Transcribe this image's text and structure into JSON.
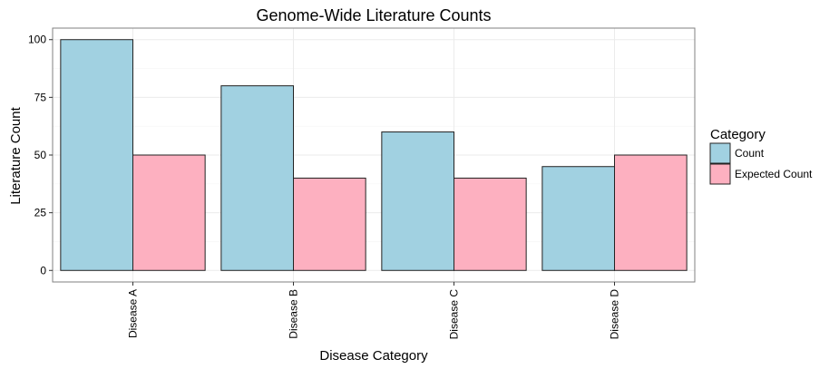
{
  "chart_data": {
    "type": "bar",
    "title": "Genome-Wide Literature Counts",
    "xlabel": "Disease Category",
    "ylabel": "Literature Count",
    "categories": [
      "Disease A",
      "Disease B",
      "Disease C",
      "Disease D"
    ],
    "series": [
      {
        "name": "Count",
        "values": [
          100,
          80,
          60,
          45
        ],
        "color": "#a1d1e1"
      },
      {
        "name": "Expected Count",
        "values": [
          50,
          40,
          40,
          50
        ],
        "color": "#fdb0c0"
      }
    ],
    "ylim": [
      -5,
      105
    ],
    "yticks": [
      0,
      25,
      50,
      75,
      100
    ],
    "grid": true,
    "legend": {
      "title": "Category",
      "position": "right"
    }
  }
}
